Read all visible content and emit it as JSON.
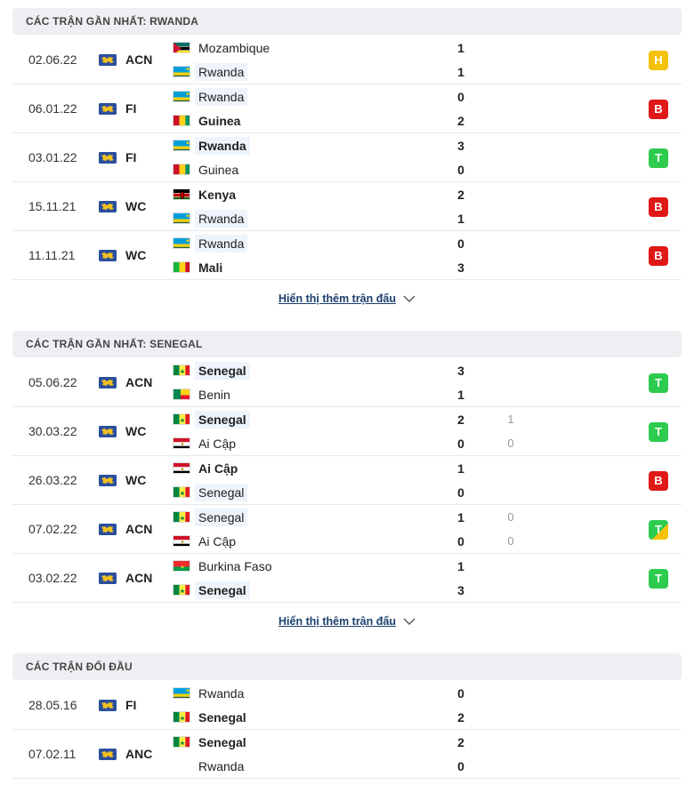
{
  "sections": [
    {
      "title": "CÁC TRẬN GẦN NHẤT: RWANDA",
      "matches": [
        {
          "date": "02.06.22",
          "comp": "ACN",
          "home": "Mozambique",
          "away": "Rwanda",
          "hs": "1",
          "as": "1",
          "hh": "",
          "ah": "",
          "result": "H",
          "home_flag": "MOZ",
          "away_flag": "RWA",
          "hl": "away",
          "bold": ""
        },
        {
          "date": "06.01.22",
          "comp": "FI",
          "home": "Rwanda",
          "away": "Guinea",
          "hs": "0",
          "as": "2",
          "hh": "",
          "ah": "",
          "result": "B",
          "home_flag": "RWA",
          "away_flag": "GUI",
          "hl": "home",
          "bold": "away"
        },
        {
          "date": "03.01.22",
          "comp": "FI",
          "home": "Rwanda",
          "away": "Guinea",
          "hs": "3",
          "as": "0",
          "hh": "",
          "ah": "",
          "result": "T",
          "home_flag": "RWA",
          "away_flag": "GUI",
          "hl": "home",
          "bold": "home"
        },
        {
          "date": "15.11.21",
          "comp": "WC",
          "home": "Kenya",
          "away": "Rwanda",
          "hs": "2",
          "as": "1",
          "hh": "",
          "ah": "",
          "result": "B",
          "home_flag": "KEN",
          "away_flag": "RWA",
          "hl": "away",
          "bold": "home"
        },
        {
          "date": "11.11.21",
          "comp": "WC",
          "home": "Rwanda",
          "away": "Mali",
          "hs": "0",
          "as": "3",
          "hh": "",
          "ah": "",
          "result": "B",
          "home_flag": "RWA",
          "away_flag": "MLI",
          "hl": "home",
          "bold": "away"
        }
      ],
      "more": "Hiển thị thêm trận đấu"
    },
    {
      "title": "CÁC TRẬN GẦN NHẤT: SENEGAL",
      "matches": [
        {
          "date": "05.06.22",
          "comp": "ACN",
          "home": "Senegal",
          "away": "Benin",
          "hs": "3",
          "as": "1",
          "hh": "",
          "ah": "",
          "result": "T",
          "home_flag": "SEN",
          "away_flag": "BEN",
          "hl": "home",
          "bold": "home"
        },
        {
          "date": "30.03.22",
          "comp": "WC",
          "home": "Senegal",
          "away": "Ai Cập",
          "hs": "2",
          "as": "0",
          "hh": "1",
          "ah": "0",
          "result": "T",
          "home_flag": "SEN",
          "away_flag": "EGY",
          "hl": "home",
          "bold": "home"
        },
        {
          "date": "26.03.22",
          "comp": "WC",
          "home": "Ai Cập",
          "away": "Senegal",
          "hs": "1",
          "as": "0",
          "hh": "",
          "ah": "",
          "result": "B",
          "home_flag": "EGY",
          "away_flag": "SEN",
          "hl": "away",
          "bold": "home"
        },
        {
          "date": "07.02.22",
          "comp": "ACN",
          "home": "Senegal",
          "away": "Ai Cập",
          "hs": "1",
          "as": "0",
          "hh": "0",
          "ah": "0",
          "result": "TH",
          "result_label": "T",
          "home_flag": "SEN",
          "away_flag": "EGY",
          "hl": "home",
          "bold": ""
        },
        {
          "date": "03.02.22",
          "comp": "ACN",
          "home": "Burkina Faso",
          "away": "Senegal",
          "hs": "1",
          "as": "3",
          "hh": "",
          "ah": "",
          "result": "T",
          "home_flag": "BFA",
          "away_flag": "SEN",
          "hl": "away",
          "bold": "away"
        }
      ],
      "more": "Hiển thị thêm trận đấu"
    },
    {
      "title": "CÁC TRẬN ĐỐI ĐẦU",
      "matches": [
        {
          "date": "28.05.16",
          "comp": "FI",
          "home": "Rwanda",
          "away": "Senegal",
          "hs": "0",
          "as": "2",
          "hh": "",
          "ah": "",
          "result": "",
          "home_flag": "RWA",
          "away_flag": "SEN",
          "hl": "",
          "bold": "away"
        },
        {
          "date": "07.02.11",
          "comp": "ANC",
          "home": "Senegal",
          "away": "Rwanda",
          "hs": "2",
          "as": "0",
          "hh": "",
          "ah": "",
          "result": "",
          "home_flag": "SEN",
          "away_flag": "NONE",
          "hl": "",
          "bold": "home"
        }
      ],
      "more": ""
    }
  ],
  "colors": {
    "win": "#2dcc4f",
    "loss": "#e01818",
    "draw": "#f4c20d",
    "link": "#1a3f6b"
  }
}
